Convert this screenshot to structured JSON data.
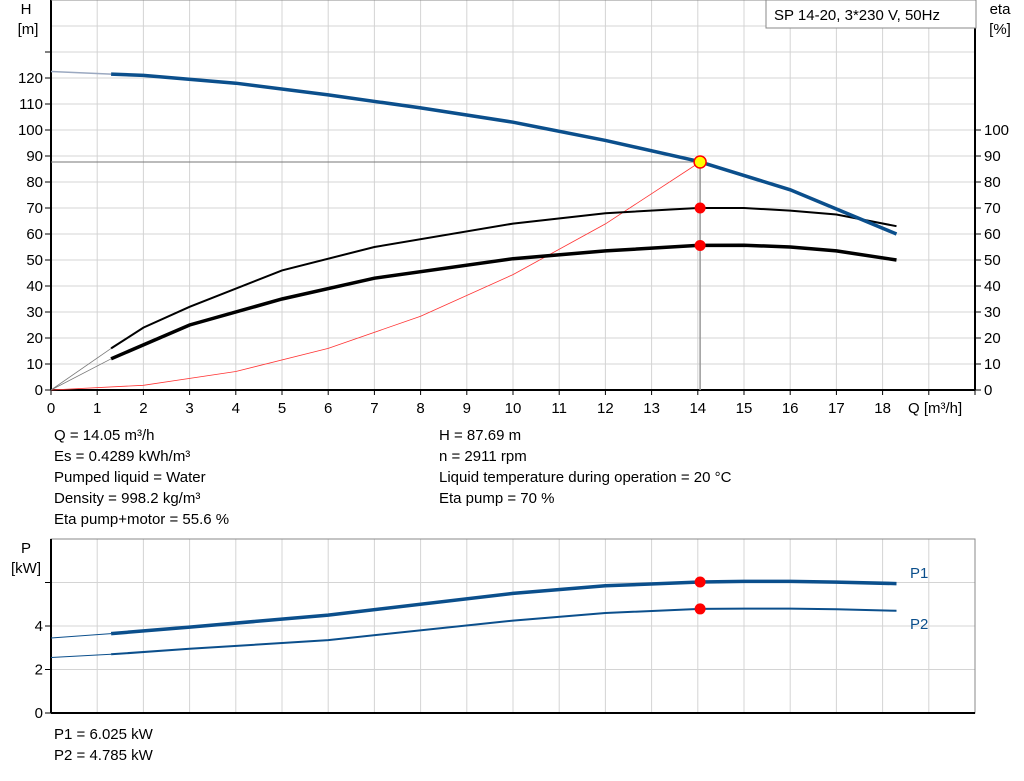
{
  "chart_data": [
    {
      "type": "line",
      "title_box": "SP 14-20, 3*230 V, 50Hz",
      "ylabel": "H",
      "yunit": "[m]",
      "y2label": "eta",
      "y2unit": "[%]",
      "xlabel": "Q [m³/h]",
      "xlim": [
        0,
        20
      ],
      "ylim": [
        0,
        150
      ],
      "grid": true,
      "xticks": [
        0,
        1,
        2,
        3,
        4,
        5,
        6,
        7,
        8,
        9,
        10,
        11,
        12,
        13,
        14,
        15,
        16,
        17,
        18
      ],
      "yticks": [
        0,
        10,
        20,
        30,
        40,
        50,
        60,
        70,
        80,
        90,
        100,
        110,
        120
      ],
      "y2ticks": [
        0,
        10,
        20,
        30,
        40,
        50,
        60,
        70,
        80,
        90,
        100
      ],
      "colors": {
        "head": "#0b4f8c",
        "eta": "#000000",
        "system": "#ff3333",
        "point": "#ff0000",
        "duty": "#ffff00"
      },
      "series": [
        {
          "id": "head",
          "x": [
            0,
            1.3,
            2,
            4,
            6,
            8,
            10,
            12,
            14,
            16,
            18.3
          ],
          "y": [
            122.5,
            121.5,
            121,
            118,
            113.5,
            108.5,
            103,
            96,
            88,
            77,
            60
          ]
        },
        {
          "id": "eta_pump",
          "x": [
            0,
            1.3,
            2,
            3,
            5,
            7,
            10,
            12,
            14,
            15,
            16,
            17,
            18.3
          ],
          "y": [
            0,
            16,
            24,
            32,
            46,
            55,
            64,
            68,
            70,
            70,
            69,
            67.5,
            63
          ]
        },
        {
          "id": "eta_pump_motor",
          "x": [
            0,
            1.3,
            3,
            5,
            7,
            10,
            12,
            14,
            15,
            16,
            17,
            18.3
          ],
          "y": [
            0,
            12,
            25,
            35,
            43,
            50.5,
            53.5,
            55.6,
            55.7,
            55,
            53.5,
            50
          ]
        },
        {
          "id": "system",
          "x": [
            0,
            2,
            4,
            6,
            8,
            10,
            12,
            14.05
          ],
          "y": [
            0,
            1.8,
            7.1,
            16,
            28.4,
            44.4,
            63.9,
            87.69
          ]
        }
      ],
      "duty_point": {
        "Q": 14.05,
        "H": 87.69,
        "eta_pump": 70,
        "eta_pump_motor": 55.6
      }
    },
    {
      "type": "line",
      "ylabel": "P",
      "yunit": "[kW]",
      "xlim": [
        0,
        20
      ],
      "ylim": [
        0,
        8
      ],
      "yticks": [
        0,
        2,
        4,
        6
      ],
      "grid": true,
      "series": [
        {
          "name": "P1",
          "x": [
            0,
            1.3,
            3,
            6,
            10,
            12,
            14.05,
            15,
            16,
            17,
            18.3
          ],
          "y": [
            3.45,
            3.65,
            3.95,
            4.5,
            5.5,
            5.85,
            6.025,
            6.05,
            6.05,
            6.02,
            5.95
          ]
        },
        {
          "name": "P2",
          "x": [
            0,
            1.3,
            3,
            6,
            10,
            12,
            14.05,
            15,
            16,
            17,
            18.3
          ],
          "y": [
            2.55,
            2.7,
            2.95,
            3.35,
            4.25,
            4.6,
            4.785,
            4.8,
            4.8,
            4.77,
            4.7
          ]
        }
      ],
      "color": "#0b4f8c"
    }
  ],
  "info_left": [
    "Q = 14.05 m³/h",
    "Es = 0.4289 kWh/m³",
    "Pumped liquid = Water",
    "Density = 998.2 kg/m³",
    "Eta pump+motor = 55.6 %"
  ],
  "info_right": [
    "H = 87.69 m",
    "n = 2911 rpm",
    "Liquid temperature during operation = 20 °C",
    "Eta pump = 70 %"
  ],
  "power_info": [
    "P1 = 6.025 kW",
    "P2 = 4.785 kW"
  ]
}
